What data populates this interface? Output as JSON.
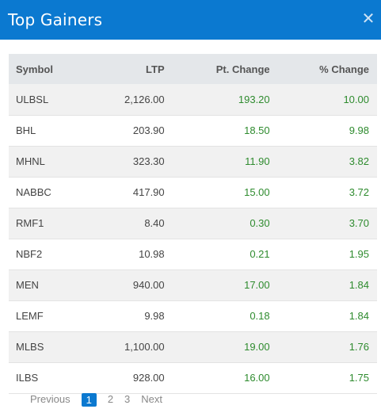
{
  "modal": {
    "title": "Top Gainers",
    "close_glyph": "✕"
  },
  "table": {
    "headers": [
      "Symbol",
      "LTP",
      "Pt. Change",
      "% Change"
    ],
    "rows": [
      [
        "ULBSL",
        "2,126.00",
        "193.20",
        "10.00"
      ],
      [
        "BHL",
        "203.90",
        "18.50",
        "9.98"
      ],
      [
        "MHNL",
        "323.30",
        "11.90",
        "3.82"
      ],
      [
        "NABBC",
        "417.90",
        "15.00",
        "3.72"
      ],
      [
        "RMF1",
        "8.40",
        "0.30",
        "3.70"
      ],
      [
        "NBF2",
        "10.98",
        "0.21",
        "1.95"
      ],
      [
        "MEN",
        "940.00",
        "17.00",
        "1.84"
      ],
      [
        "LEMF",
        "9.98",
        "0.18",
        "1.84"
      ],
      [
        "MLBS",
        "1,100.00",
        "19.00",
        "1.76"
      ],
      [
        "ILBS",
        "928.00",
        "16.00",
        "1.75"
      ]
    ]
  },
  "pagination": {
    "previous": "Previous",
    "pages": [
      "1",
      "2",
      "3"
    ],
    "next": "Next",
    "current": "1"
  },
  "colors": {
    "header_bg": "#0b79d0",
    "positive": "#2e8b2e"
  }
}
